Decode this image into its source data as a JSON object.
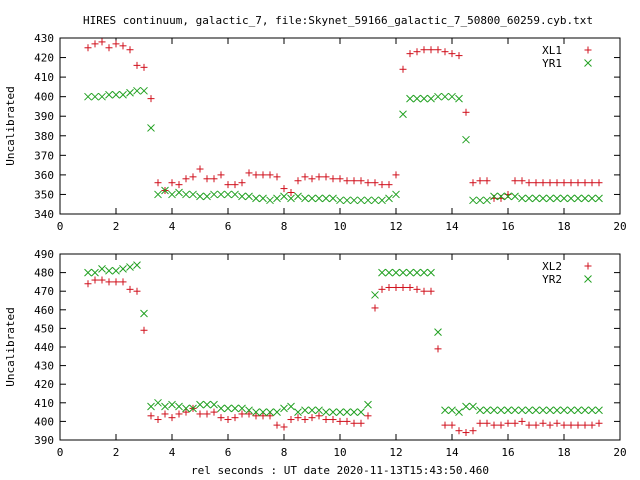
{
  "title": "HIRES continuum, galactic_7, file:Skynet_59166_galactic_7_50800_60259.cyb.txt",
  "colors": {
    "series_a": "#d0101c",
    "series_b": "#20a020"
  },
  "chart_data": [
    {
      "type": "scatter",
      "ylabel": "Uncalibrated",
      "xlabel": "",
      "xlim": [
        0,
        20
      ],
      "ylim": [
        340,
        430
      ],
      "xticks": [
        0,
        2,
        4,
        6,
        8,
        10,
        12,
        14,
        16,
        18,
        20
      ],
      "yticks": [
        340,
        350,
        360,
        370,
        380,
        390,
        400,
        410,
        420,
        430
      ],
      "legend_position": "top-right",
      "grid": false,
      "series": [
        {
          "name": "XL1",
          "marker": "plus",
          "x": [
            1.0,
            1.25,
            1.5,
            1.75,
            2.0,
            2.25,
            2.5,
            2.75,
            3.0,
            3.25,
            3.5,
            3.75,
            4.0,
            4.25,
            4.5,
            4.75,
            5.0,
            5.25,
            5.5,
            5.75,
            6.0,
            6.25,
            6.5,
            6.75,
            7.0,
            7.25,
            7.5,
            7.75,
            8.0,
            8.25,
            8.5,
            8.75,
            9.0,
            9.25,
            9.5,
            9.75,
            10.0,
            10.25,
            10.5,
            10.75,
            11.0,
            11.25,
            11.5,
            11.75,
            12.0,
            12.25,
            12.5,
            12.75,
            13.0,
            13.25,
            13.5,
            13.75,
            14.0,
            14.25,
            14.5,
            14.75,
            15.0,
            15.25,
            15.5,
            15.75,
            16.0,
            16.25,
            16.5,
            16.75,
            17.0,
            17.25,
            17.5,
            17.75,
            18.0,
            18.25,
            18.5,
            18.75,
            19.0,
            19.25
          ],
          "y": [
            425,
            427,
            428,
            425,
            427,
            426,
            424,
            416,
            415,
            399,
            356,
            352,
            356,
            355,
            358,
            359,
            363,
            358,
            358,
            360,
            355,
            355,
            356,
            361,
            360,
            360,
            360,
            359,
            353,
            351,
            357,
            359,
            358,
            359,
            359,
            358,
            358,
            357,
            357,
            357,
            356,
            356,
            355,
            355,
            360,
            414,
            422,
            423,
            424,
            424,
            424,
            423,
            422,
            421,
            392,
            356,
            357,
            357,
            348,
            348,
            350,
            357,
            357,
            356,
            356,
            356,
            356,
            356,
            356,
            356,
            356,
            356,
            356,
            356
          ]
        },
        {
          "name": "YR1",
          "marker": "x",
          "x": [
            1.0,
            1.25,
            1.5,
            1.75,
            2.0,
            2.25,
            2.5,
            2.75,
            3.0,
            3.25,
            3.5,
            3.75,
            4.0,
            4.25,
            4.5,
            4.75,
            5.0,
            5.25,
            5.5,
            5.75,
            6.0,
            6.25,
            6.5,
            6.75,
            7.0,
            7.25,
            7.5,
            7.75,
            8.0,
            8.25,
            8.5,
            8.75,
            9.0,
            9.25,
            9.5,
            9.75,
            10.0,
            10.25,
            10.5,
            10.75,
            11.0,
            11.25,
            11.5,
            11.75,
            12.0,
            12.25,
            12.5,
            12.75,
            13.0,
            13.25,
            13.5,
            13.75,
            14.0,
            14.25,
            14.5,
            14.75,
            15.0,
            15.25,
            15.5,
            15.75,
            16.0,
            16.25,
            16.5,
            16.75,
            17.0,
            17.25,
            17.5,
            17.75,
            18.0,
            18.25,
            18.5,
            18.75,
            19.0,
            19.25
          ],
          "y": [
            400,
            400,
            400,
            401,
            401,
            401,
            402,
            403,
            403,
            384,
            350,
            352,
            350,
            351,
            350,
            350,
            349,
            349,
            350,
            350,
            350,
            350,
            349,
            349,
            348,
            348,
            347,
            348,
            349,
            348,
            349,
            348,
            348,
            348,
            348,
            348,
            347,
            347,
            347,
            347,
            347,
            347,
            347,
            348,
            350,
            391,
            399,
            399,
            399,
            399,
            400,
            400,
            400,
            399,
            378,
            347,
            347,
            347,
            349,
            349,
            349,
            349,
            348,
            348,
            348,
            348,
            348,
            348,
            348,
            348,
            348,
            348,
            348,
            348
          ]
        }
      ]
    },
    {
      "type": "scatter",
      "ylabel": "Uncalibrated",
      "xlabel": "rel seconds : UT date 2020-11-13T15:43:50.460",
      "xlim": [
        0,
        20
      ],
      "ylim": [
        390,
        490
      ],
      "xticks": [
        0,
        2,
        4,
        6,
        8,
        10,
        12,
        14,
        16,
        18,
        20
      ],
      "yticks": [
        390,
        400,
        410,
        420,
        430,
        440,
        450,
        460,
        470,
        480,
        490
      ],
      "legend_position": "top-right",
      "grid": false,
      "series": [
        {
          "name": "XL2",
          "marker": "plus",
          "x": [
            1.0,
            1.25,
            1.5,
            1.75,
            2.0,
            2.25,
            2.5,
            2.75,
            3.0,
            3.25,
            3.5,
            3.75,
            4.0,
            4.25,
            4.5,
            4.75,
            5.0,
            5.25,
            5.5,
            5.75,
            6.0,
            6.25,
            6.5,
            6.75,
            7.0,
            7.25,
            7.5,
            7.75,
            8.0,
            8.25,
            8.5,
            8.75,
            9.0,
            9.25,
            9.5,
            9.75,
            10.0,
            10.25,
            10.5,
            10.75,
            11.0,
            11.25,
            11.5,
            11.75,
            12.0,
            12.25,
            12.5,
            12.75,
            13.0,
            13.25,
            13.5,
            13.75,
            14.0,
            14.25,
            14.5,
            14.75,
            15.0,
            15.25,
            15.5,
            15.75,
            16.0,
            16.25,
            16.5,
            16.75,
            17.0,
            17.25,
            17.5,
            17.75,
            18.0,
            18.25,
            18.5,
            18.75,
            19.0,
            19.25
          ],
          "y": [
            474,
            476,
            476,
            475,
            475,
            475,
            471,
            470,
            449,
            403,
            401,
            404,
            402,
            404,
            405,
            407,
            404,
            404,
            405,
            402,
            401,
            402,
            404,
            404,
            403,
            403,
            403,
            398,
            397,
            401,
            402,
            401,
            402,
            403,
            401,
            401,
            400,
            400,
            399,
            399,
            403,
            461,
            471,
            472,
            472,
            472,
            472,
            471,
            470,
            470,
            439,
            398,
            398,
            395,
            394,
            395,
            399,
            399,
            398,
            398,
            399,
            399,
            400,
            398,
            398,
            399,
            398,
            399,
            398,
            398,
            398,
            398,
            398,
            399
          ]
        },
        {
          "name": "YR2",
          "marker": "x",
          "x": [
            1.0,
            1.25,
            1.5,
            1.75,
            2.0,
            2.25,
            2.5,
            2.75,
            3.0,
            3.25,
            3.5,
            3.75,
            4.0,
            4.25,
            4.5,
            4.75,
            5.0,
            5.25,
            5.5,
            5.75,
            6.0,
            6.25,
            6.5,
            6.75,
            7.0,
            7.25,
            7.5,
            7.75,
            8.0,
            8.25,
            8.5,
            8.75,
            9.0,
            9.25,
            9.5,
            9.75,
            10.0,
            10.25,
            10.5,
            10.75,
            11.0,
            11.25,
            11.5,
            11.75,
            12.0,
            12.25,
            12.5,
            12.75,
            13.0,
            13.25,
            13.5,
            13.75,
            14.0,
            14.25,
            14.5,
            14.75,
            15.0,
            15.25,
            15.5,
            15.75,
            16.0,
            16.25,
            16.5,
            16.75,
            17.0,
            17.25,
            17.5,
            17.75,
            18.0,
            18.25,
            18.5,
            18.75,
            19.0,
            19.25
          ],
          "y": [
            480,
            480,
            482,
            481,
            481,
            482,
            483,
            484,
            458,
            408,
            410,
            408,
            409,
            408,
            407,
            407,
            409,
            409,
            409,
            407,
            407,
            407,
            407,
            406,
            405,
            405,
            405,
            405,
            407,
            408,
            405,
            406,
            406,
            406,
            405,
            405,
            405,
            405,
            405,
            405,
            409,
            468,
            480,
            480,
            480,
            480,
            480,
            480,
            480,
            480,
            448,
            406,
            406,
            405,
            408,
            408,
            406,
            406,
            406,
            406,
            406,
            406,
            406,
            406,
            406,
            406,
            406,
            406,
            406,
            406,
            406,
            406,
            406,
            406
          ]
        }
      ]
    }
  ]
}
